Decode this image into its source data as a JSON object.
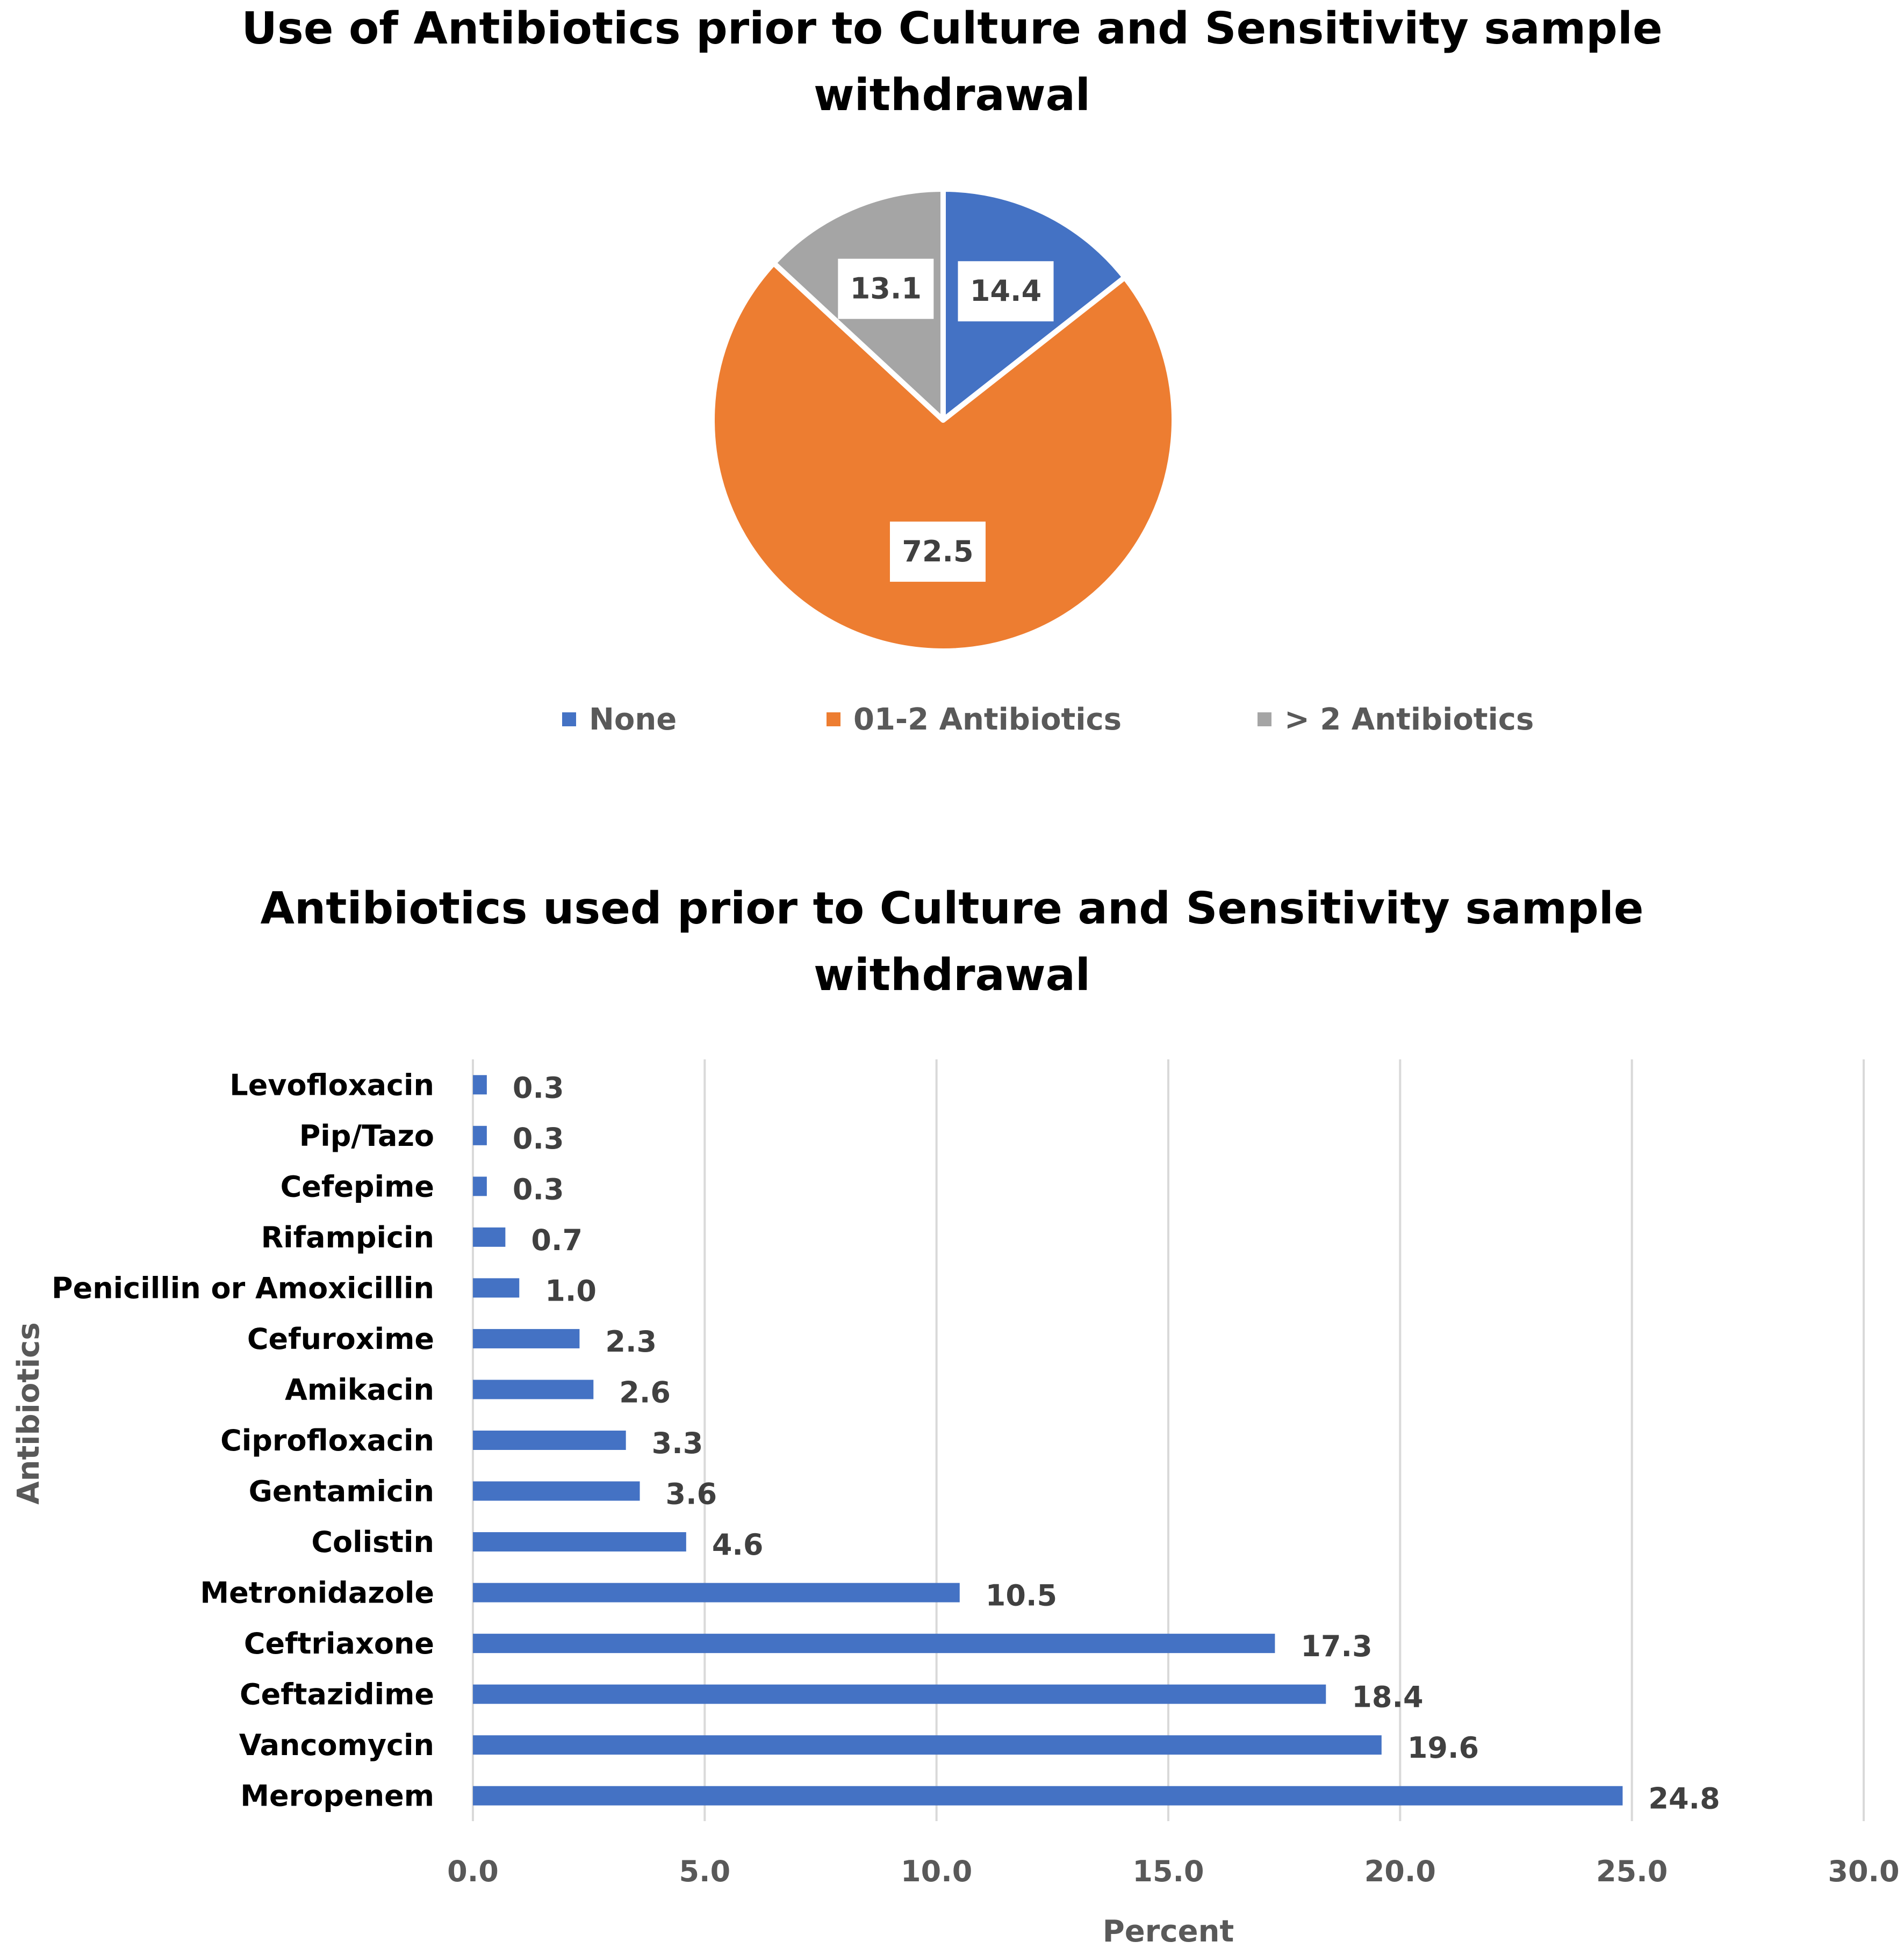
{
  "chart_data": [
    {
      "type": "pie",
      "title": "Use of Antibiotics prior to Culture and Sensitivity sample\nwithdrawal",
      "categories": [
        "None",
        "01-2 Antibiotics",
        "> 2 Antibiotics"
      ],
      "values": [
        14.4,
        72.5,
        13.1
      ],
      "colors": [
        "#4472C4",
        "#ED7D31",
        "#A5A5A5"
      ],
      "data_labels": [
        "14.4",
        "72.5",
        "13.1"
      ],
      "legend": "bottom"
    },
    {
      "type": "bar",
      "orientation": "horizontal",
      "title": "Antibiotics used prior to Culture and Sensitivity sample\nwithdrawal",
      "xlabel": "Percent",
      "ylabel": "Antibiotics",
      "categories": [
        "Levofloxacin",
        "Pip/Tazo",
        "Cefepime",
        "Rifampicin",
        "Penicillin or Amoxicillin",
        "Cefuroxime",
        "Amikacin",
        "Ciprofloxacin",
        "Gentamicin",
        "Colistin",
        "Metronidazole",
        "Ceftriaxone",
        "Ceftazidime",
        "Vancomycin",
        "Meropenem"
      ],
      "values": [
        0.3,
        0.3,
        0.3,
        0.7,
        1.0,
        2.3,
        2.6,
        3.3,
        3.6,
        4.6,
        10.5,
        17.3,
        18.4,
        19.6,
        24.8
      ],
      "data_labels": [
        "0.3",
        "0.3",
        "0.3",
        "0.7",
        "1.0",
        "2.3",
        "2.6",
        "3.3",
        "3.6",
        "4.6",
        "10.5",
        "17.3",
        "18.4",
        "19.6",
        "24.8"
      ],
      "xlim": [
        0,
        30
      ],
      "xticks": [
        "0.0",
        "5.0",
        "10.0",
        "15.0",
        "20.0",
        "25.0",
        "30.0"
      ],
      "grid": true,
      "color": "#4472C4"
    }
  ]
}
